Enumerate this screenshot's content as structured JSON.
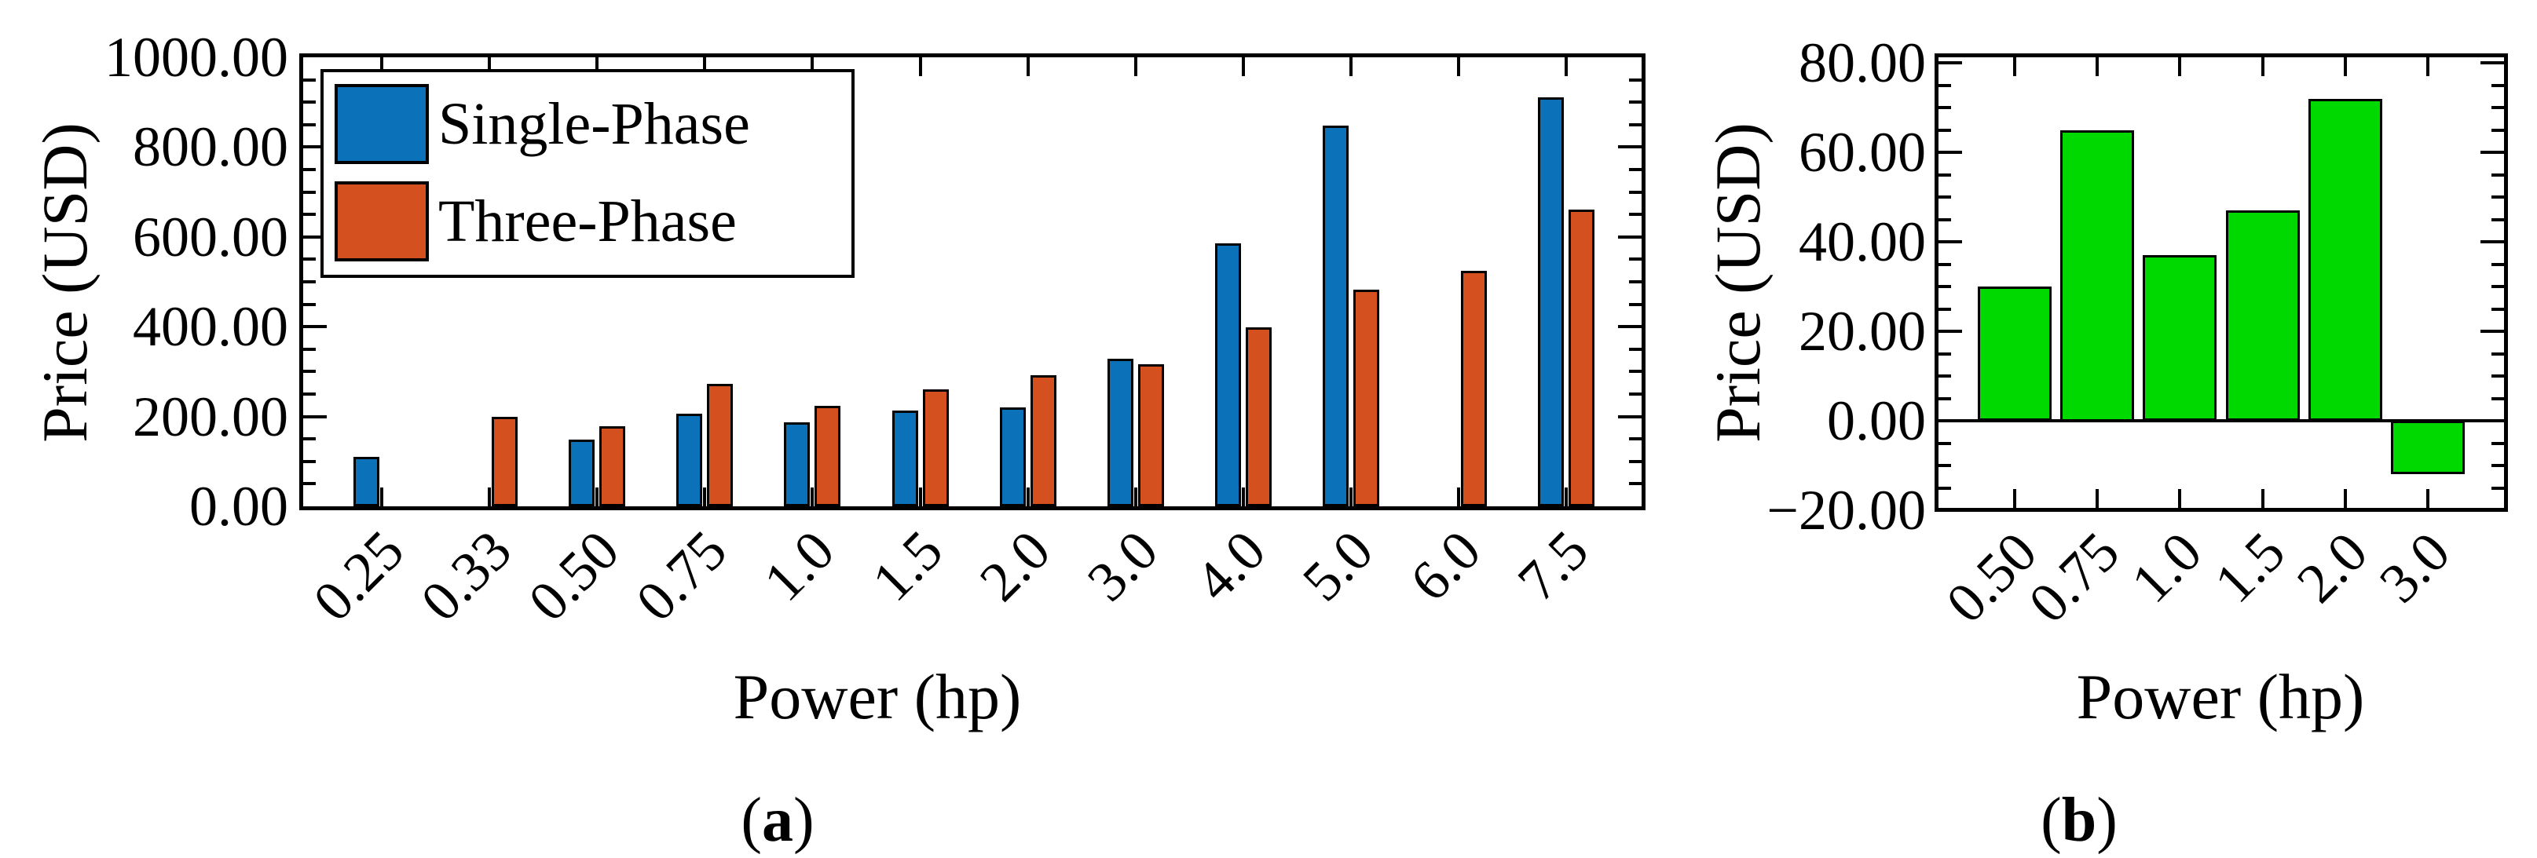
{
  "figure": {
    "background": "#ffffff",
    "caption_a": "a",
    "caption_b": "b"
  },
  "chart_data": [
    {
      "type": "bar",
      "panel": "a",
      "title": "",
      "xlabel": "Power (hp)",
      "ylabel": "Price (USD)",
      "categories": [
        "0.25",
        "0.33",
        "0.50",
        "0.75",
        "1.0",
        "1.5",
        "2.0",
        "3.0",
        "4.0",
        "5.0",
        "6.0",
        "7.5"
      ],
      "series": [
        {
          "name": "Single-Phase",
          "color": "#0b72b9",
          "values": [
            110,
            null,
            148,
            207,
            187,
            214,
            220,
            328,
            585,
            848,
            null,
            910
          ]
        },
        {
          "name": "Three-Phase",
          "color": "#d4501e",
          "values": [
            null,
            200,
            178,
            272,
            224,
            261,
            292,
            316,
            398,
            483,
            525,
            660
          ]
        }
      ],
      "bar_edge_color": "#000000",
      "ylim": [
        0,
        1000
      ],
      "ytick_step": 200,
      "ytick_minor_step": 50,
      "ytick_labels": [
        "0.00",
        "200.00",
        "400.00",
        "600.00",
        "800.00",
        "1000.00"
      ],
      "grid": false,
      "legend_position": "top-left"
    },
    {
      "type": "bar",
      "panel": "b",
      "title": "",
      "xlabel": "Power (hp)",
      "ylabel": "Price (USD)",
      "categories": [
        "0.50",
        "0.75",
        "1.0",
        "1.5",
        "2.0",
        "3.0"
      ],
      "series": [
        {
          "name": "",
          "color": "#00d900",
          "values": [
            30,
            65,
            37,
            47,
            72,
            -12
          ]
        }
      ],
      "bar_edge_color": "#000000",
      "ylim": [
        -20,
        80
      ],
      "ytick_step": 20,
      "ytick_minor_step": 5,
      "ytick_labels": [
        "−20.00",
        "0.00",
        "20.00",
        "40.00",
        "60.00",
        "80.00"
      ],
      "grid": false,
      "legend_position": "none"
    }
  ]
}
